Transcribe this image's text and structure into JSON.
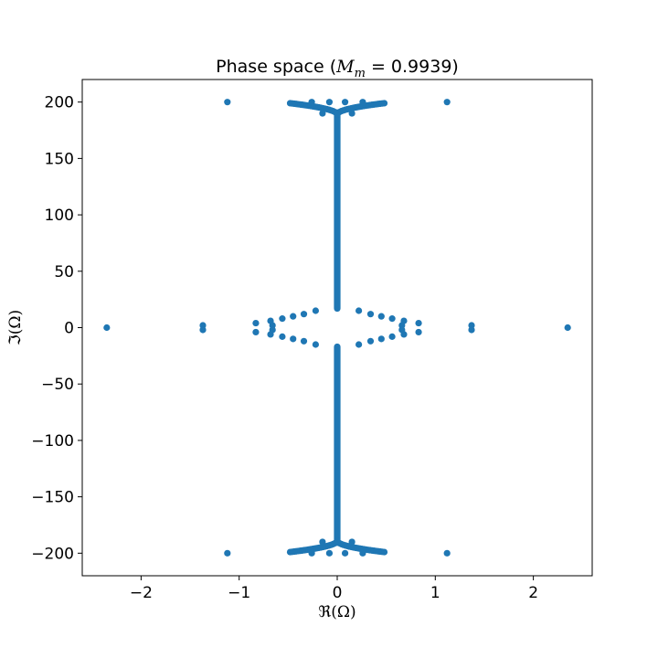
{
  "chart_data": {
    "type": "scatter",
    "title": {
      "prefix": "Phase space (",
      "math_main": "M",
      "math_sub": "m",
      "math_rest": " = 0.9939)"
    },
    "xlabel": "ℜ(Ω)",
    "ylabel": "ℑ(Ω)",
    "xlim": [
      -2.6,
      2.6
    ],
    "ylim": [
      -220,
      220
    ],
    "xticks": [
      -2,
      -1,
      0,
      1,
      2
    ],
    "yticks": [
      -200,
      -150,
      -100,
      -50,
      0,
      50,
      100,
      150,
      200
    ],
    "xtick_labels": [
      "−2",
      "−1",
      "0",
      "1",
      "2"
    ],
    "ytick_labels": [
      "−200",
      "−150",
      "−100",
      "−50",
      "0",
      "50",
      "100",
      "150",
      "200"
    ],
    "grid": false,
    "marker_color": "#1f77b4",
    "series": [
      {
        "points": [
          [
            -2.35,
            0
          ],
          [
            2.35,
            0
          ],
          [
            -1.37,
            2
          ],
          [
            -1.37,
            -2
          ],
          [
            1.37,
            2
          ],
          [
            1.37,
            -2
          ],
          [
            -1.12,
            200
          ],
          [
            1.12,
            200
          ],
          [
            -1.12,
            -200
          ],
          [
            1.12,
            -200
          ],
          [
            -0.83,
            4
          ],
          [
            -0.83,
            -4
          ],
          [
            0.83,
            4
          ],
          [
            0.83,
            -4
          ],
          [
            -0.68,
            6
          ],
          [
            -0.68,
            -6
          ],
          [
            0.68,
            6
          ],
          [
            0.68,
            -6
          ],
          [
            -0.66,
            2
          ],
          [
            -0.66,
            -2
          ],
          [
            0.66,
            2
          ],
          [
            0.66,
            -2
          ],
          [
            -0.56,
            8
          ],
          [
            -0.56,
            -8
          ],
          [
            0.56,
            8
          ],
          [
            0.56,
            -8
          ],
          [
            -0.45,
            10
          ],
          [
            -0.45,
            -10
          ],
          [
            0.45,
            10
          ],
          [
            0.45,
            -10
          ],
          [
            -0.34,
            12
          ],
          [
            -0.34,
            -12
          ],
          [
            0.34,
            12
          ],
          [
            0.34,
            -12
          ],
          [
            -0.22,
            15
          ],
          [
            -0.22,
            -15
          ],
          [
            0.22,
            15
          ],
          [
            0.22,
            -15
          ],
          [
            -0.26,
            200
          ],
          [
            -0.08,
            200
          ],
          [
            0.08,
            200
          ],
          [
            0.26,
            200
          ],
          [
            -0.26,
            -200
          ],
          [
            -0.08,
            -200
          ],
          [
            0.08,
            -200
          ],
          [
            0.26,
            -200
          ],
          [
            -0.15,
            190
          ],
          [
            0.15,
            190
          ],
          [
            -0.15,
            -190
          ],
          [
            0.15,
            -190
          ]
        ],
        "arcs": [
          {
            "x_from": 0.0,
            "x_to": 0.48,
            "y_from": 189,
            "y_to": 199,
            "count": 24
          },
          {
            "x_from": 0.0,
            "x_to": -0.48,
            "y_from": 189,
            "y_to": 199,
            "count": 24
          },
          {
            "x_from": 0.0,
            "x_to": 0.48,
            "y_from": -189,
            "y_to": -199,
            "count": 24
          },
          {
            "x_from": 0.0,
            "x_to": -0.48,
            "y_from": -189,
            "y_to": -199,
            "count": 24
          }
        ],
        "columns": [
          {
            "x": 0,
            "y_from": 17,
            "y_to": 190
          },
          {
            "x": 0,
            "y_from": -190,
            "y_to": -17
          }
        ]
      }
    ]
  }
}
